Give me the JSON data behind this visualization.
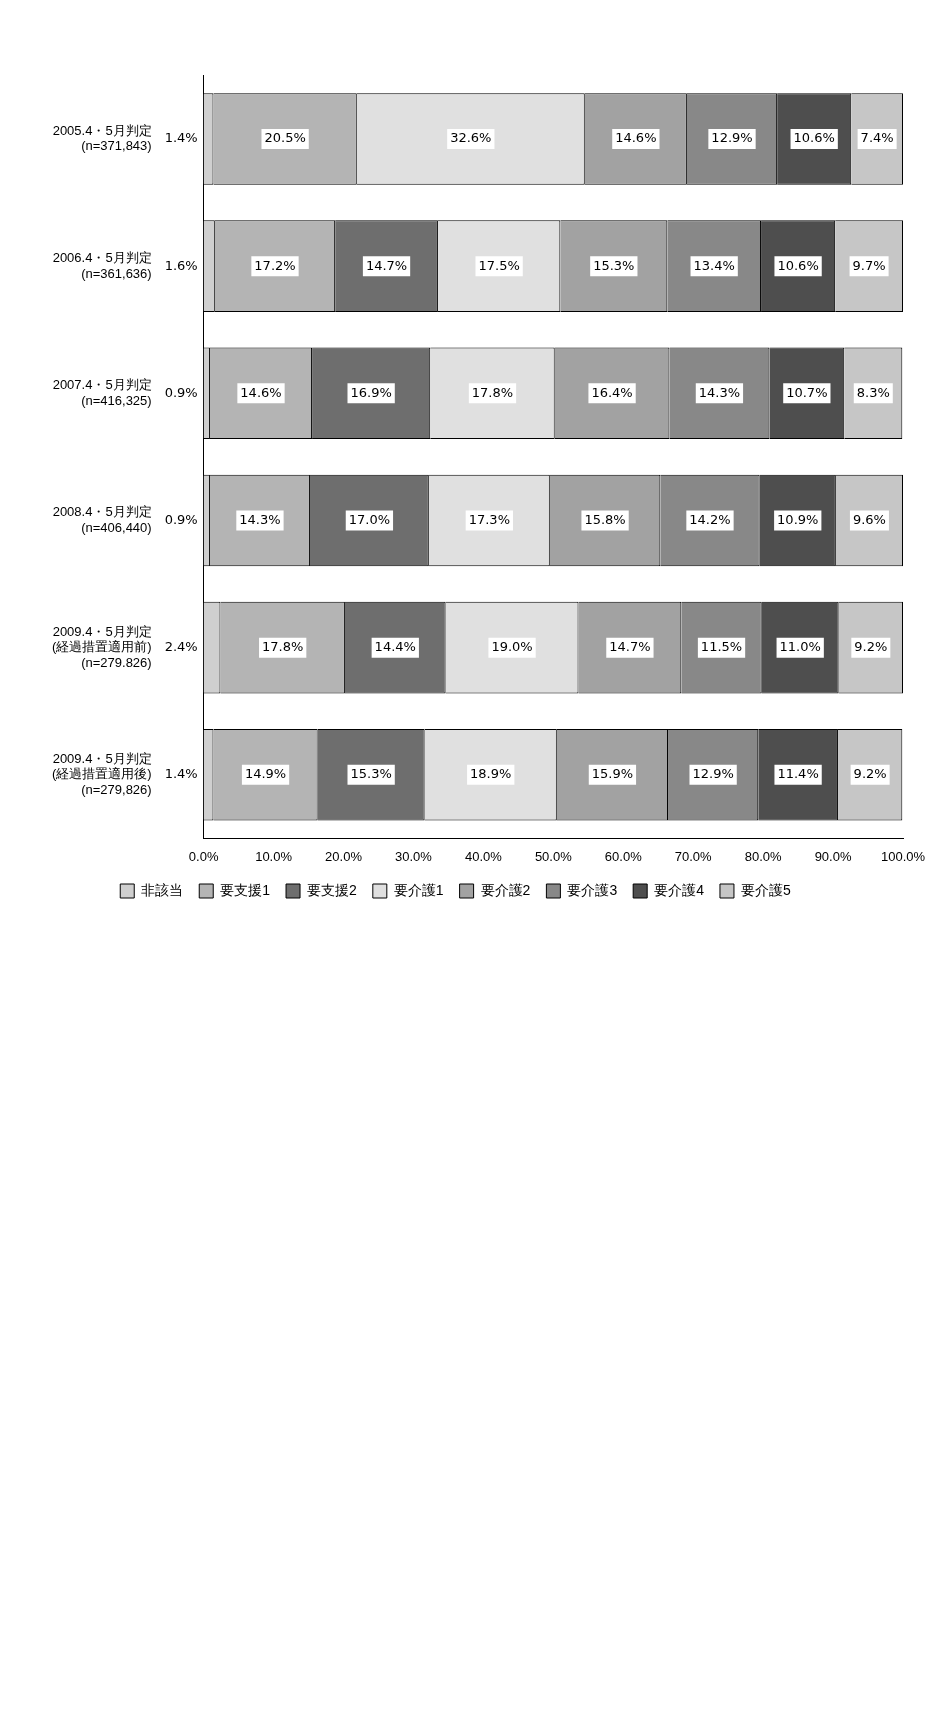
{
  "chart_data": {
    "type": "bar",
    "orientation": "horizontal",
    "stacked": true,
    "categories": [
      "2005.4・5月判定\n(n=371,843)",
      "2006.4・5月判定\n(n=361,636)",
      "2007.4・5月判定\n(n=416,325)",
      "2008.4・5月判定\n(n=406,440)",
      "2009.4・5月判定\n(経過措置適用前)\n(n=279.826)",
      "2009.4・5月判定\n(経過措置適用後)\n(n=279,826)"
    ],
    "series": [
      {
        "name": "非該当",
        "color": "#cfcfcf",
        "values": [
          1.4,
          1.6,
          0.9,
          0.9,
          2.4,
          1.4
        ],
        "value_labels": [
          "1.4%",
          "1.6%",
          "0.9%",
          "0.9%",
          "2.4%",
          "1.4%"
        ]
      },
      {
        "name": "要支援1",
        "color": "#b4b4b4",
        "values": [
          20.5,
          17.2,
          14.6,
          14.3,
          17.8,
          14.9
        ],
        "value_labels": [
          "20.5%",
          "17.2%",
          "14.6%",
          "14.3%",
          "17.8%",
          "14.9%"
        ]
      },
      {
        "name": "要支援2",
        "color": "#6e6e6e",
        "values": [
          null,
          14.7,
          16.9,
          17.0,
          14.4,
          15.3
        ],
        "value_labels": [
          null,
          "14.7%",
          "16.9%",
          "17.0%",
          "14.4%",
          "15.3%"
        ]
      },
      {
        "name": "要介護1",
        "color": "#e0e0e0",
        "values": [
          32.6,
          17.5,
          17.8,
          17.3,
          19.0,
          18.9
        ],
        "value_labels": [
          "32.6%",
          "17.5%",
          "17.8%",
          "17.3%",
          "19.0%",
          "18.9%"
        ]
      },
      {
        "name": "要介護2",
        "color": "#a2a2a2",
        "values": [
          14.6,
          15.3,
          16.4,
          15.8,
          14.7,
          15.9
        ],
        "value_labels": [
          "14.6%",
          "15.3%",
          "16.4%",
          "15.8%",
          "14.7%",
          "15.9%"
        ]
      },
      {
        "name": "要介護3",
        "color": "#888888",
        "values": [
          12.9,
          13.4,
          14.3,
          14.2,
          11.5,
          12.9
        ],
        "value_labels": [
          "12.9%",
          "13.4%",
          "14.3%",
          "14.2%",
          "11.5%",
          "12.9%"
        ]
      },
      {
        "name": "要介護4",
        "color": "#4e4e4e",
        "values": [
          10.6,
          10.6,
          10.7,
          10.9,
          11.0,
          11.4
        ],
        "value_labels": [
          "10.6%",
          "10.6%",
          "10.7%",
          "10.9%",
          "11.0%",
          "11.4%"
        ]
      },
      {
        "name": "要介護5",
        "color": "#c6c6c6",
        "values": [
          7.4,
          9.7,
          8.3,
          9.6,
          9.2,
          9.2
        ],
        "value_labels": [
          "7.4%",
          "9.7%",
          "8.3%",
          "9.6%",
          "9.2%",
          "9.2%"
        ]
      }
    ],
    "xlim": [
      0,
      100
    ],
    "xticks": [
      {
        "value": 0,
        "label": "0.0%"
      },
      {
        "value": 10,
        "label": "10.0%"
      },
      {
        "value": 20,
        "label": "20.0%"
      },
      {
        "value": 30,
        "label": "30.0%"
      },
      {
        "value": 40,
        "label": "40.0%"
      },
      {
        "value": 50,
        "label": "50.0%"
      },
      {
        "value": 60,
        "label": "60.0%"
      },
      {
        "value": 70,
        "label": "70.0%"
      },
      {
        "value": 80,
        "label": "80.0%"
      },
      {
        "value": 90,
        "label": "90.0%"
      },
      {
        "value": 100,
        "label": "100.0%"
      }
    ],
    "legend": "bottom",
    "grid": false
  }
}
